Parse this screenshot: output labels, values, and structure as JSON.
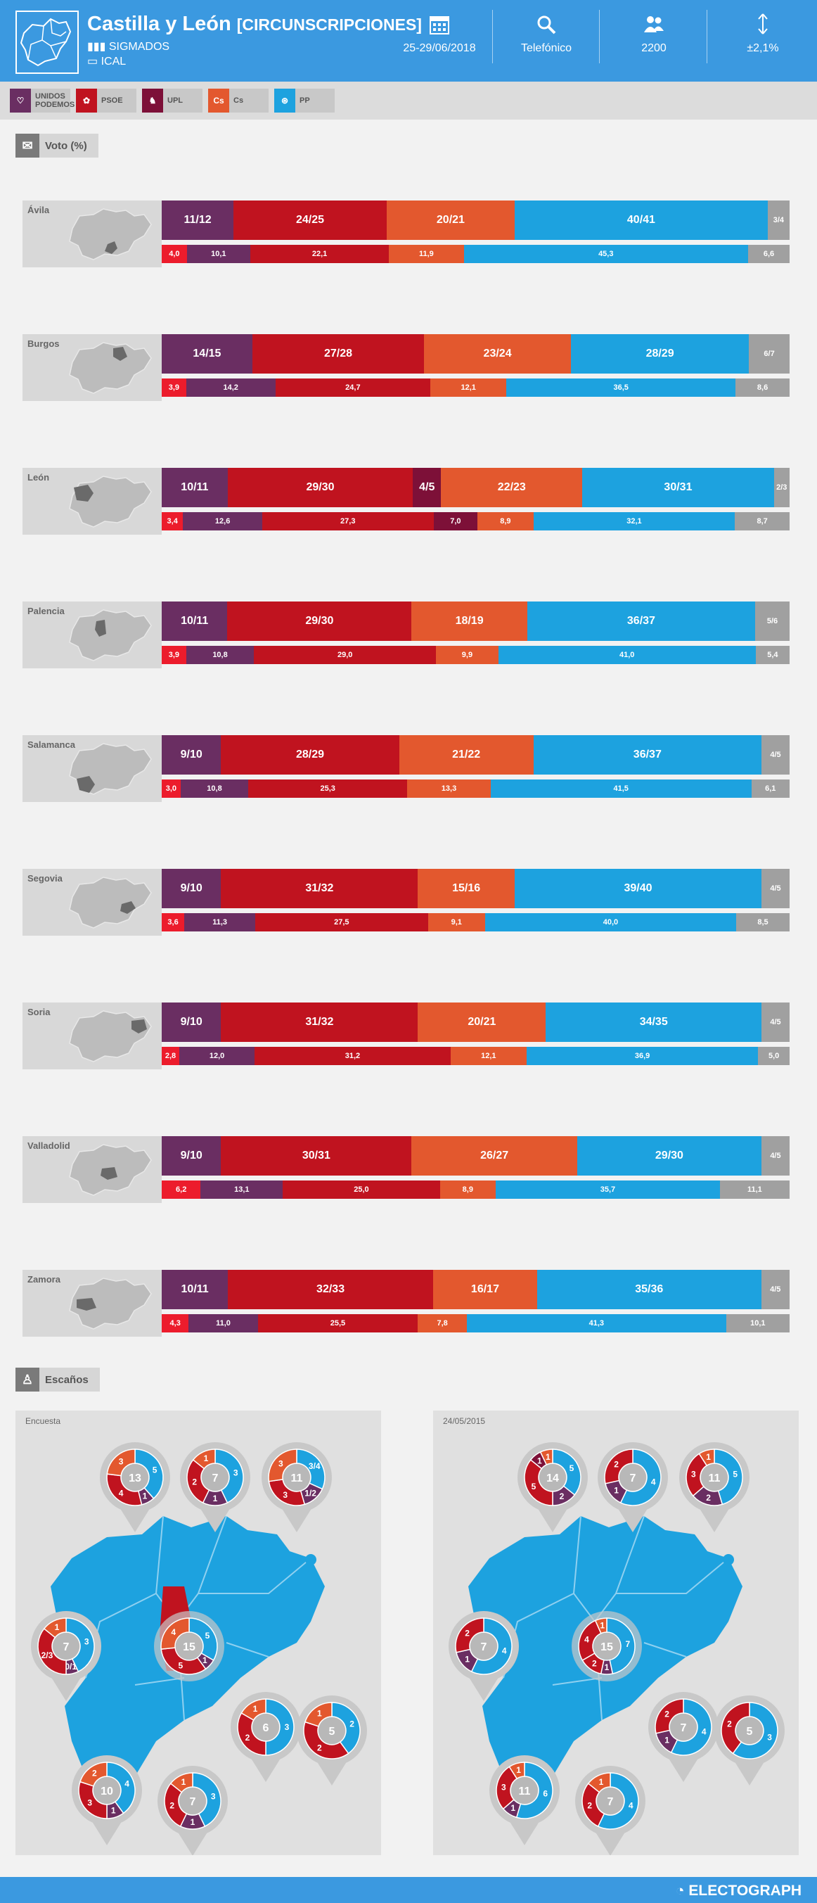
{
  "header": {
    "title": "Castilla y León",
    "subtitle": "[CIRCUNSCRIPCIONES]",
    "pollster": "SIGMADOS",
    "media": "ICAL",
    "date": "25-29/06/2018",
    "method": "Telefónico",
    "sample": "2200",
    "error": "±2,1%"
  },
  "parties": [
    {
      "key": "up",
      "name": "UNIDOS PODEMOS",
      "color": "#6a2e62"
    },
    {
      "key": "psoe",
      "name": "PSOE",
      "color": "#c0131f"
    },
    {
      "key": "upl",
      "name": "UPL",
      "color": "#7d1038"
    },
    {
      "key": "cs",
      "name": "Cs",
      "color": "#e3582e"
    },
    {
      "key": "pp",
      "name": "PP",
      "color": "#1da2df"
    }
  ],
  "colors": {
    "podemos_vote": "#ec1c2c",
    "others": "#a0a0a0"
  },
  "sections": {
    "vote": "Voto (%)",
    "seats": "Escaños"
  },
  "chart_data": {
    "type": "bar",
    "provinces": [
      {
        "name": "Ávila",
        "seats": [
          {
            "p": "up",
            "v": "11/12"
          },
          {
            "p": "psoe",
            "v": "24/25"
          },
          {
            "p": "cs",
            "v": "20/21"
          },
          {
            "p": "pp",
            "v": "40/41"
          },
          {
            "p": "others",
            "v": "3/4"
          }
        ],
        "votes": [
          {
            "p": "podemos_vote",
            "v": 4.0,
            "label": "4,0"
          },
          {
            "p": "up",
            "v": 10.1,
            "label": "10,1"
          },
          {
            "p": "psoe",
            "v": 22.1,
            "label": "22,1"
          },
          {
            "p": "cs",
            "v": 11.9,
            "label": "11,9"
          },
          {
            "p": "pp",
            "v": 45.3,
            "label": "45,3"
          },
          {
            "p": "others",
            "v": 6.6,
            "label": "6,6"
          }
        ]
      },
      {
        "name": "Burgos",
        "seats": [
          {
            "p": "up",
            "v": "14/15"
          },
          {
            "p": "psoe",
            "v": "27/28"
          },
          {
            "p": "cs",
            "v": "23/24"
          },
          {
            "p": "pp",
            "v": "28/29"
          },
          {
            "p": "others",
            "v": "6/7"
          }
        ],
        "votes": [
          {
            "p": "podemos_vote",
            "v": 3.9,
            "label": "3,9"
          },
          {
            "p": "up",
            "v": 14.2,
            "label": "14,2"
          },
          {
            "p": "psoe",
            "v": 24.7,
            "label": "24,7"
          },
          {
            "p": "cs",
            "v": 12.1,
            "label": "12,1"
          },
          {
            "p": "pp",
            "v": 36.5,
            "label": "36,5"
          },
          {
            "p": "others",
            "v": 8.6,
            "label": "8,6"
          }
        ]
      },
      {
        "name": "León",
        "seats": [
          {
            "p": "up",
            "v": "10/11"
          },
          {
            "p": "psoe",
            "v": "29/30"
          },
          {
            "p": "upl",
            "v": "4/5"
          },
          {
            "p": "cs",
            "v": "22/23"
          },
          {
            "p": "pp",
            "v": "30/31"
          },
          {
            "p": "others",
            "v": "2/3"
          }
        ],
        "votes": [
          {
            "p": "podemos_vote",
            "v": 3.4,
            "label": "3,4"
          },
          {
            "p": "up",
            "v": 12.6,
            "label": "12,6"
          },
          {
            "p": "psoe",
            "v": 27.3,
            "label": "27,3"
          },
          {
            "p": "upl",
            "v": 7.0,
            "label": "7,0"
          },
          {
            "p": "cs",
            "v": 8.9,
            "label": "8,9"
          },
          {
            "p": "pp",
            "v": 32.1,
            "label": "32,1"
          },
          {
            "p": "others",
            "v": 8.7,
            "label": "8,7"
          }
        ]
      },
      {
        "name": "Palencia",
        "seats": [
          {
            "p": "up",
            "v": "10/11"
          },
          {
            "p": "psoe",
            "v": "29/30"
          },
          {
            "p": "cs",
            "v": "18/19"
          },
          {
            "p": "pp",
            "v": "36/37"
          },
          {
            "p": "others",
            "v": "5/6"
          }
        ],
        "votes": [
          {
            "p": "podemos_vote",
            "v": 3.9,
            "label": "3,9"
          },
          {
            "p": "up",
            "v": 10.8,
            "label": "10,8"
          },
          {
            "p": "psoe",
            "v": 29.0,
            "label": "29,0"
          },
          {
            "p": "cs",
            "v": 9.9,
            "label": "9,9"
          },
          {
            "p": "pp",
            "v": 41.0,
            "label": "41,0"
          },
          {
            "p": "others",
            "v": 5.4,
            "label": "5,4"
          }
        ]
      },
      {
        "name": "Salamanca",
        "seats": [
          {
            "p": "up",
            "v": "9/10"
          },
          {
            "p": "psoe",
            "v": "28/29"
          },
          {
            "p": "cs",
            "v": "21/22"
          },
          {
            "p": "pp",
            "v": "36/37"
          },
          {
            "p": "others",
            "v": "4/5"
          }
        ],
        "votes": [
          {
            "p": "podemos_vote",
            "v": 3.0,
            "label": "3,0"
          },
          {
            "p": "up",
            "v": 10.8,
            "label": "10,8"
          },
          {
            "p": "psoe",
            "v": 25.3,
            "label": "25,3"
          },
          {
            "p": "cs",
            "v": 13.3,
            "label": "13,3"
          },
          {
            "p": "pp",
            "v": 41.5,
            "label": "41,5"
          },
          {
            "p": "others",
            "v": 6.1,
            "label": "6,1"
          }
        ]
      },
      {
        "name": "Segovia",
        "seats": [
          {
            "p": "up",
            "v": "9/10"
          },
          {
            "p": "psoe",
            "v": "31/32"
          },
          {
            "p": "cs",
            "v": "15/16"
          },
          {
            "p": "pp",
            "v": "39/40"
          },
          {
            "p": "others",
            "v": "4/5"
          }
        ],
        "votes": [
          {
            "p": "podemos_vote",
            "v": 3.6,
            "label": "3,6"
          },
          {
            "p": "up",
            "v": 11.3,
            "label": "11,3"
          },
          {
            "p": "psoe",
            "v": 27.5,
            "label": "27,5"
          },
          {
            "p": "cs",
            "v": 9.1,
            "label": "9,1"
          },
          {
            "p": "pp",
            "v": 40.0,
            "label": "40,0"
          },
          {
            "p": "others",
            "v": 8.5,
            "label": "8,5"
          }
        ]
      },
      {
        "name": "Soria",
        "seats": [
          {
            "p": "up",
            "v": "9/10"
          },
          {
            "p": "psoe",
            "v": "31/32"
          },
          {
            "p": "cs",
            "v": "20/21"
          },
          {
            "p": "pp",
            "v": "34/35"
          },
          {
            "p": "others",
            "v": "4/5"
          }
        ],
        "votes": [
          {
            "p": "podemos_vote",
            "v": 2.8,
            "label": "2,8"
          },
          {
            "p": "up",
            "v": 12.0,
            "label": "12,0"
          },
          {
            "p": "psoe",
            "v": 31.2,
            "label": "31,2"
          },
          {
            "p": "cs",
            "v": 12.1,
            "label": "12,1"
          },
          {
            "p": "pp",
            "v": 36.9,
            "label": "36,9"
          },
          {
            "p": "others",
            "v": 5.0,
            "label": "5,0"
          }
        ]
      },
      {
        "name": "Valladolid",
        "seats": [
          {
            "p": "up",
            "v": "9/10"
          },
          {
            "p": "psoe",
            "v": "30/31"
          },
          {
            "p": "cs",
            "v": "26/27"
          },
          {
            "p": "pp",
            "v": "29/30"
          },
          {
            "p": "others",
            "v": "4/5"
          }
        ],
        "votes": [
          {
            "p": "podemos_vote",
            "v": 6.2,
            "label": "6,2"
          },
          {
            "p": "up",
            "v": 13.1,
            "label": "13,1"
          },
          {
            "p": "psoe",
            "v": 25.0,
            "label": "25,0"
          },
          {
            "p": "cs",
            "v": 8.9,
            "label": "8,9"
          },
          {
            "p": "pp",
            "v": 35.7,
            "label": "35,7"
          },
          {
            "p": "others",
            "v": 11.1,
            "label": "11,1"
          }
        ]
      },
      {
        "name": "Zamora",
        "seats": [
          {
            "p": "up",
            "v": "10/11"
          },
          {
            "p": "psoe",
            "v": "32/33"
          },
          {
            "p": "cs",
            "v": "16/17"
          },
          {
            "p": "pp",
            "v": "35/36"
          },
          {
            "p": "others",
            "v": "4/5"
          }
        ],
        "votes": [
          {
            "p": "podemos_vote",
            "v": 4.3,
            "label": "4,3"
          },
          {
            "p": "up",
            "v": 11.0,
            "label": "11,0"
          },
          {
            "p": "psoe",
            "v": 25.5,
            "label": "25,5"
          },
          {
            "p": "cs",
            "v": 7.8,
            "label": "7,8"
          },
          {
            "p": "pp",
            "v": 41.3,
            "label": "41,3"
          },
          {
            "p": "others",
            "v": 10.1,
            "label": "10,1"
          }
        ]
      }
    ]
  },
  "seats_panels": [
    {
      "label": "Encuesta",
      "highlight": "Palencia",
      "donuts": [
        {
          "total": "13",
          "labels": [
            "5",
            "1",
            "4",
            "3"
          ],
          "values": [
            5,
            1,
            4,
            3
          ],
          "colors": [
            "pp",
            "up",
            "psoe",
            "cs"
          ]
        },
        {
          "total": "7",
          "labels": [
            "3",
            "1",
            "2",
            "1"
          ],
          "values": [
            3,
            1,
            2,
            1
          ],
          "colors": [
            "pp",
            "up",
            "psoe",
            "cs"
          ]
        },
        {
          "total": "11",
          "labels": [
            "3/4",
            "1/2",
            "3",
            "3"
          ],
          "values": [
            3.5,
            1.5,
            3,
            3
          ],
          "colors": [
            "pp",
            "up",
            "psoe",
            "cs"
          ]
        },
        {
          "total": "7",
          "labels": [
            "3",
            "0/1",
            "2/3",
            "1"
          ],
          "values": [
            3,
            0.5,
            2.5,
            1
          ],
          "colors": [
            "pp",
            "up",
            "psoe",
            "cs"
          ]
        },
        {
          "total": "15",
          "labels": [
            "5",
            "1",
            "5",
            "4"
          ],
          "values": [
            5,
            1,
            5,
            4
          ],
          "colors": [
            "pp",
            "up",
            "psoe",
            "cs"
          ]
        },
        {
          "total": "6",
          "labels": [
            "3",
            "2",
            "1"
          ],
          "values": [
            3,
            2,
            1
          ],
          "colors": [
            "pp",
            "psoe",
            "cs"
          ]
        },
        {
          "total": "5",
          "labels": [
            "2",
            "2",
            "1"
          ],
          "values": [
            2,
            2,
            1
          ],
          "colors": [
            "pp",
            "psoe",
            "cs"
          ]
        },
        {
          "total": "10",
          "labels": [
            "4",
            "1",
            "3",
            "2"
          ],
          "values": [
            4,
            1,
            3,
            2
          ],
          "colors": [
            "pp",
            "up",
            "psoe",
            "cs"
          ]
        },
        {
          "total": "7",
          "labels": [
            "3",
            "1",
            "2",
            "1"
          ],
          "values": [
            3,
            1,
            2,
            1
          ],
          "colors": [
            "pp",
            "up",
            "psoe",
            "cs"
          ]
        }
      ]
    },
    {
      "label": "24/05/2015",
      "highlight": "",
      "donuts": [
        {
          "total": "14",
          "labels": [
            "5",
            "2",
            "5",
            "1",
            "1"
          ],
          "values": [
            5,
            2,
            5,
            1,
            1
          ],
          "colors": [
            "pp",
            "up",
            "psoe",
            "upl",
            "cs"
          ]
        },
        {
          "total": "7",
          "labels": [
            "4",
            "1",
            "2"
          ],
          "values": [
            4,
            1,
            2
          ],
          "colors": [
            "pp",
            "up",
            "psoe"
          ]
        },
        {
          "total": "11",
          "labels": [
            "5",
            "2",
            "3",
            "1"
          ],
          "values": [
            5,
            2,
            3,
            1
          ],
          "colors": [
            "pp",
            "up",
            "psoe",
            "cs"
          ]
        },
        {
          "total": "7",
          "labels": [
            "4",
            "1",
            "2"
          ],
          "values": [
            4,
            1,
            2
          ],
          "colors": [
            "pp",
            "up",
            "psoe"
          ]
        },
        {
          "total": "15",
          "labels": [
            "7",
            "1",
            "2",
            "4",
            "1"
          ],
          "values": [
            7,
            1,
            2,
            4,
            1
          ],
          "colors": [
            "pp",
            "up",
            "psoe",
            "psoe",
            "cs"
          ]
        },
        {
          "total": "7",
          "labels": [
            "4",
            "1",
            "2"
          ],
          "values": [
            4,
            1,
            2
          ],
          "colors": [
            "pp",
            "up",
            "psoe"
          ]
        },
        {
          "total": "5",
          "labels": [
            "3",
            "2"
          ],
          "values": [
            3,
            2
          ],
          "colors": [
            "pp",
            "psoe"
          ]
        },
        {
          "total": "11",
          "labels": [
            "6",
            "1",
            "3",
            "1"
          ],
          "values": [
            6,
            1,
            3,
            1
          ],
          "colors": [
            "pp",
            "up",
            "psoe",
            "cs"
          ]
        },
        {
          "total": "7",
          "labels": [
            "4",
            "2",
            "1"
          ],
          "values": [
            4,
            2,
            1
          ],
          "colors": [
            "pp",
            "psoe",
            "cs"
          ]
        }
      ]
    }
  ],
  "footer": {
    "brand": "ELECTOGRAPH"
  }
}
